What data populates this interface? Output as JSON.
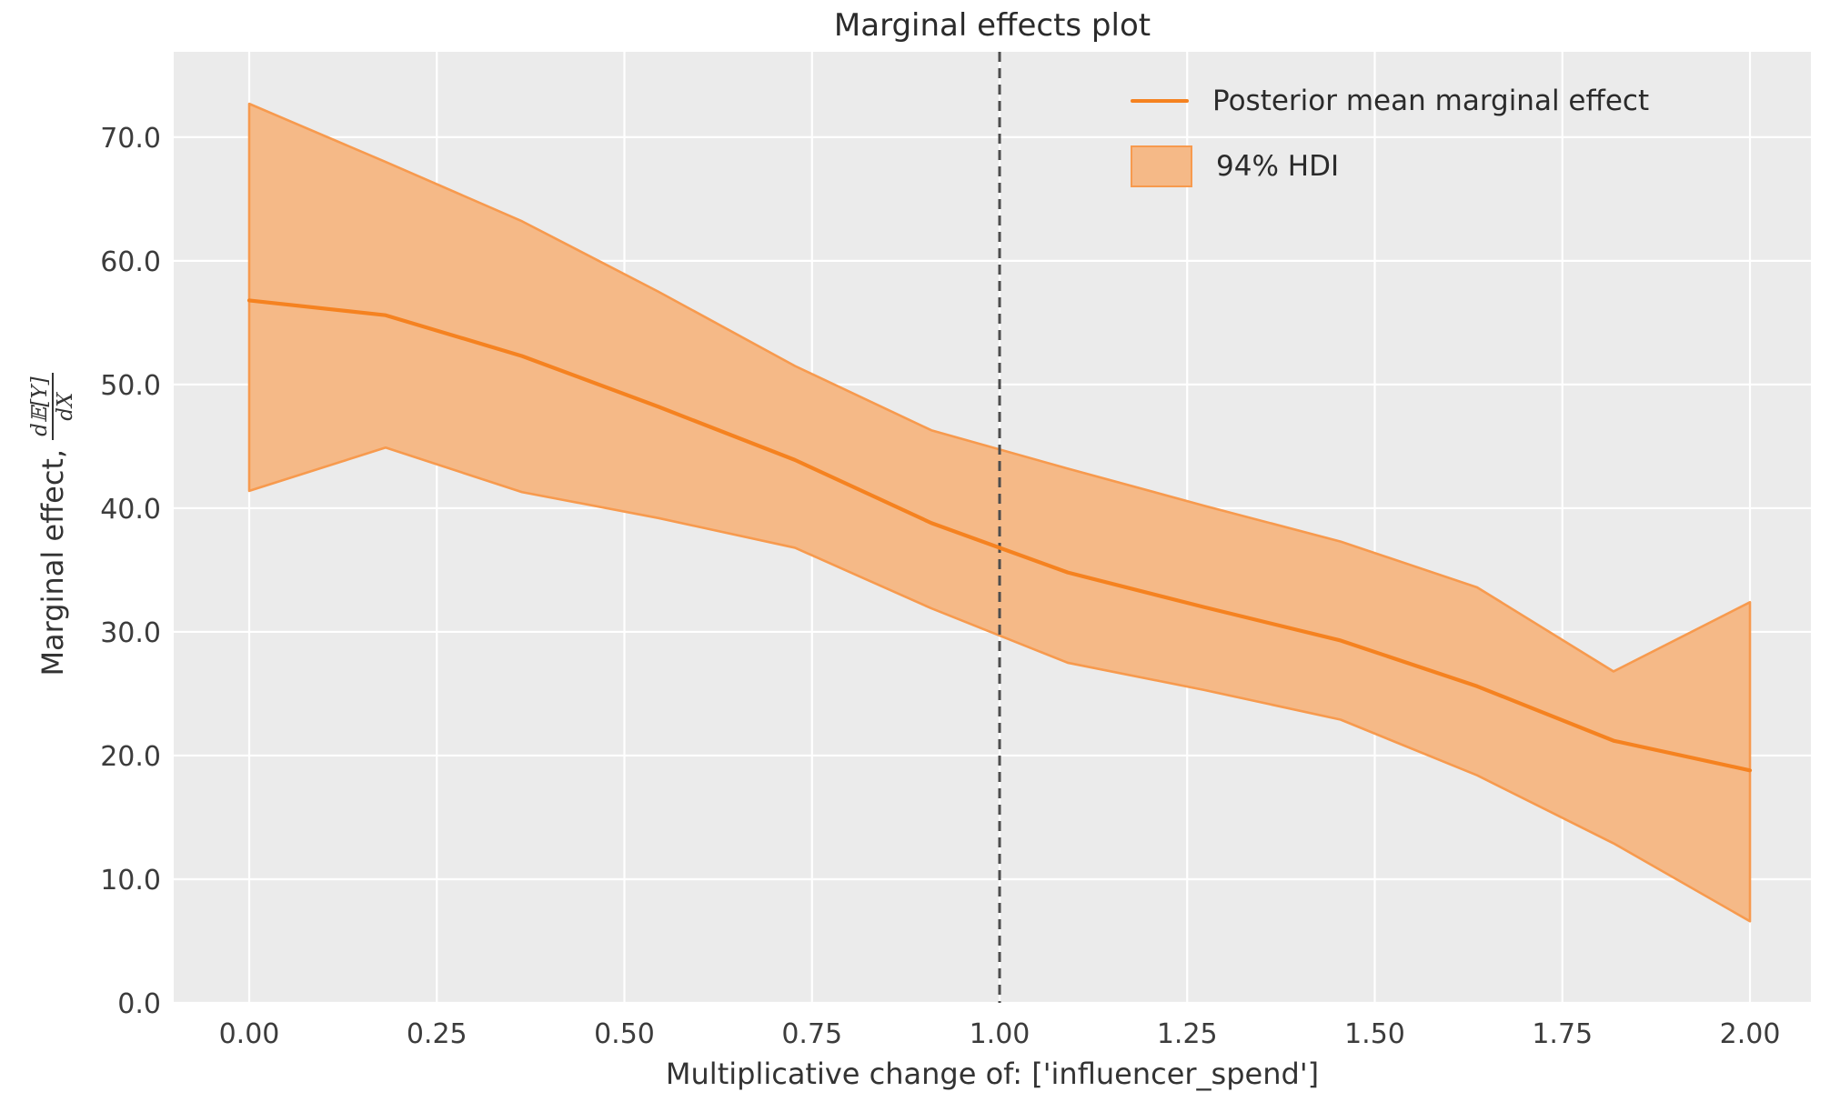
{
  "figure": {
    "title": "Marginal effects plot",
    "xlabel": "Multiplicative change of: ['influencer_spend']",
    "ylabel_text": "Marginal effect,",
    "ylabel_frac_numerator": "d𝔼[Y]",
    "ylabel_frac_denominator": "dX"
  },
  "legend": {
    "items": [
      {
        "type": "line",
        "label": "Posterior mean marginal effect"
      },
      {
        "type": "patch",
        "label": "94% HDI"
      }
    ]
  },
  "chart_data": {
    "type": "line",
    "title": "Marginal effects plot",
    "xlabel": "Multiplicative change of: ['influencer_spend']",
    "ylabel": "Marginal effect, dE[Y]/dX",
    "x": [
      0.0,
      0.1818,
      0.3636,
      0.5455,
      0.7273,
      0.9091,
      1.0909,
      1.2727,
      1.4545,
      1.6364,
      1.8182,
      2.0
    ],
    "series": [
      {
        "name": "Posterior mean marginal effect",
        "values": [
          56.8,
          55.6,
          52.3,
          48.2,
          43.9,
          38.8,
          34.8,
          32.0,
          29.3,
          25.6,
          21.2,
          18.8
        ]
      },
      {
        "name": "94% HDI upper",
        "values": [
          72.7,
          68.0,
          63.2,
          57.5,
          51.5,
          46.3,
          43.2,
          40.2,
          37.3,
          33.6,
          26.8,
          32.4
        ]
      },
      {
        "name": "94% HDI lower",
        "values": [
          41.4,
          44.9,
          41.3,
          39.2,
          36.8,
          31.9,
          27.5,
          25.3,
          22.9,
          18.4,
          12.9,
          6.6
        ]
      }
    ],
    "reference_vline_x": 1.0,
    "xticks": [
      0.0,
      0.25,
      0.5,
      0.75,
      1.0,
      1.25,
      1.5,
      1.75,
      2.0
    ],
    "xtick_labels": [
      "0.00",
      "0.25",
      "0.50",
      "0.75",
      "1.00",
      "1.25",
      "1.50",
      "1.75",
      "2.00"
    ],
    "yticks": [
      0,
      10,
      20,
      30,
      40,
      50,
      60,
      70
    ],
    "ytick_labels": [
      "0.0",
      "10.0",
      "20.0",
      "30.0",
      "40.0",
      "50.0",
      "60.0",
      "70.0"
    ],
    "xlim": [
      -0.1006,
      2.0812
    ],
    "ylim": [
      0,
      76.9
    ],
    "grid": true,
    "legend_position": "upper right",
    "colors": {
      "mean_line": "#f58220",
      "band_fill": "#f5b987",
      "band_edge": "#f79a4e",
      "vline": "#4d4d4d",
      "axes_background": "#ebebeb",
      "gridline": "#ffffff",
      "tick_label": "#3c3c3c"
    }
  }
}
